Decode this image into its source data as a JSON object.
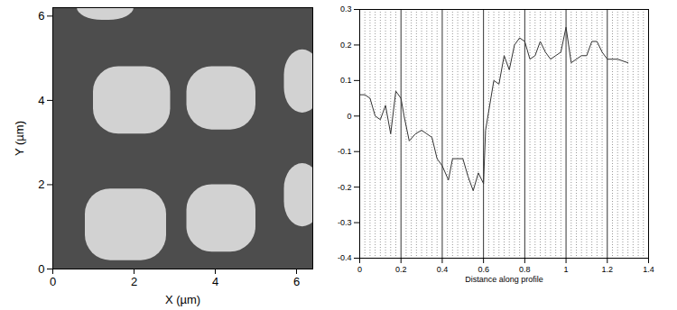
{
  "chart_data": [
    {
      "type": "image",
      "x_label": "X (µm)",
      "y_label": "Y (µm)",
      "xlim": [
        0,
        6.4
      ],
      "ylim": [
        0,
        6.2
      ],
      "xticks": [
        0,
        2,
        4,
        6
      ],
      "yticks": [
        0,
        2,
        4,
        6
      ],
      "color": "#d2d2d2",
      "features": [
        {
          "x1": 1.0,
          "x2": 2.9,
          "y1": 3.2,
          "y2": 4.8
        },
        {
          "x1": 3.3,
          "x2": 5.0,
          "y1": 3.3,
          "y2": 4.8
        },
        {
          "x1": 5.7,
          "x2": 6.6,
          "y1": 3.7,
          "y2": 5.2
        },
        {
          "x1": 0.8,
          "x2": 2.8,
          "y1": 0.2,
          "y2": 1.9
        },
        {
          "x1": 3.3,
          "x2": 5.0,
          "y1": 0.4,
          "y2": 2.0
        },
        {
          "x1": 5.7,
          "x2": 6.6,
          "y1": 1.0,
          "y2": 2.5
        },
        {
          "x1": 0.6,
          "x2": 2.0,
          "y1": 5.9,
          "y2": 6.5
        }
      ]
    },
    {
      "type": "line",
      "x_label": "Distance along profile",
      "xlim": [
        0,
        1.4
      ],
      "ylim": [
        -0.4,
        0.3
      ],
      "xticks": [
        0,
        0.2,
        0.4,
        0.6,
        0.8,
        1,
        1.2,
        1.4
      ],
      "yticks": [
        -0.4,
        -0.3,
        -0.2,
        -0.1,
        0,
        0.1,
        0.2,
        0.3
      ],
      "grid": true,
      "color": "#333333",
      "x": [
        0,
        0.025,
        0.05,
        0.075,
        0.1,
        0.125,
        0.15,
        0.175,
        0.2,
        0.215,
        0.24,
        0.27,
        0.3,
        0.325,
        0.35,
        0.375,
        0.4,
        0.43,
        0.45,
        0.475,
        0.5,
        0.525,
        0.55,
        0.575,
        0.6,
        0.61,
        0.65,
        0.675,
        0.7,
        0.725,
        0.75,
        0.775,
        0.8,
        0.825,
        0.85,
        0.875,
        0.9,
        0.925,
        0.95,
        0.975,
        1.0,
        1.025,
        1.05,
        1.075,
        1.1,
        1.125,
        1.15,
        1.175,
        1.2,
        1.25,
        1.3
      ],
      "values": [
        0.06,
        0.06,
        0.05,
        0.0,
        -0.01,
        0.03,
        -0.05,
        0.07,
        0.05,
        0.0,
        -0.07,
        -0.05,
        -0.04,
        -0.05,
        -0.06,
        -0.12,
        -0.14,
        -0.18,
        -0.12,
        -0.12,
        -0.12,
        -0.17,
        -0.21,
        -0.16,
        -0.19,
        -0.04,
        0.1,
        0.09,
        0.17,
        0.13,
        0.2,
        0.22,
        0.21,
        0.16,
        0.17,
        0.21,
        0.18,
        0.16,
        0.17,
        0.18,
        0.25,
        0.15,
        0.16,
        0.17,
        0.17,
        0.21,
        0.21,
        0.18,
        0.16,
        0.16,
        0.15
      ]
    }
  ]
}
